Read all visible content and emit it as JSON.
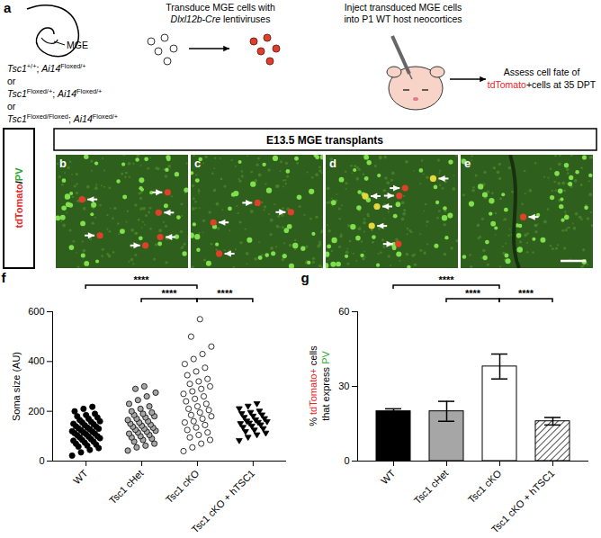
{
  "panels": {
    "a": {
      "letter": "a",
      "region": "MGE",
      "separator": "or",
      "genotypes": [
        [
          {
            "text": "Tsc1",
            "style": "italic"
          },
          {
            "text": "+/+",
            "style": "sup"
          },
          {
            "text": "; "
          },
          {
            "text": "Ai14",
            "style": "italic"
          },
          {
            "text": "Floxed/+",
            "style": "sup"
          }
        ],
        [
          {
            "text": "Tsc1",
            "style": "italic"
          },
          {
            "text": "Floxed/+",
            "style": "sup"
          },
          {
            "text": "; "
          },
          {
            "text": "Ai14",
            "style": "italic"
          },
          {
            "text": "Floxed/+",
            "style": "sup"
          }
        ],
        [
          {
            "text": "Tsc1",
            "style": "italic"
          },
          {
            "text": "Floxed/Floxed",
            "style": "sup"
          },
          {
            "text": "; "
          },
          {
            "text": "Ai14",
            "style": "italic"
          },
          {
            "text": "Floxed/+",
            "style": "sup"
          }
        ]
      ],
      "steps": [
        [
          [
            {
              "text": "Transduce MGE cells with"
            }
          ],
          [
            {
              "text": "Dlxl12b-Cre",
              "style": "italic"
            },
            {
              "text": " lentiviruses"
            }
          ]
        ],
        [
          [
            {
              "text": "Inject transduced MGE cells"
            }
          ],
          [
            {
              "text": "into P1 WT host neocortices"
            }
          ]
        ],
        [
          [
            {
              "text": "Assess cell fate of"
            }
          ],
          [
            {
              "text": "tdTomato",
              "color": "#e8251f"
            },
            {
              "text": "+cells at 35 DPT"
            }
          ]
        ]
      ]
    },
    "images": {
      "header": "E13.5 MGE transplants",
      "side_label": [
        {
          "text": "tdTomato",
          "color": "#e8251f"
        },
        {
          "text": "/"
        },
        {
          "text": "PV",
          "color": "#2fa82f"
        }
      ],
      "letters": [
        "b",
        "c",
        "d",
        "e"
      ]
    },
    "chart_letters": [
      "f",
      "g"
    ]
  },
  "chart_data": [
    {
      "type": "scatter",
      "ylabel": "Soma size (AU)",
      "ylim": [
        0,
        600
      ],
      "yticks": [
        0,
        200,
        400,
        600
      ],
      "series": [
        {
          "name": "WT",
          "color": "#000000",
          "marker": "circle",
          "values": [
            22,
            35,
            45,
            52,
            58,
            62,
            66,
            70,
            74,
            78,
            82,
            85,
            88,
            92,
            95,
            98,
            100,
            104,
            108,
            110,
            112,
            115,
            118,
            120,
            124,
            128,
            130,
            132,
            135,
            138,
            140,
            144,
            148,
            150,
            155,
            158,
            160,
            165,
            170,
            175,
            180,
            185,
            190,
            200,
            210,
            218
          ]
        },
        {
          "name": "Tsc1 cHet",
          "color": "#a6a6a6",
          "marker": "circle",
          "values": [
            42,
            55,
            62,
            70,
            78,
            85,
            90,
            95,
            100,
            105,
            110,
            115,
            118,
            122,
            126,
            130,
            134,
            138,
            142,
            146,
            150,
            155,
            160,
            165,
            170,
            175,
            180,
            185,
            190,
            195,
            200,
            210,
            220,
            230,
            245,
            260,
            275,
            290,
            300
          ]
        },
        {
          "name": "Tsc1 cKO",
          "color": "#ffffff",
          "marker": "circle",
          "values": [
            40,
            55,
            70,
            85,
            95,
            105,
            115,
            125,
            135,
            145,
            155,
            160,
            170,
            180,
            185,
            195,
            205,
            210,
            220,
            230,
            240,
            250,
            260,
            270,
            280,
            290,
            300,
            310,
            320,
            330,
            345,
            360,
            375,
            390,
            410,
            430,
            460,
            500,
            570
          ]
        },
        {
          "name": "Tsc1 cKO + hTSC1",
          "color": "#000000",
          "marker": "triangle-down",
          "values": [
            82,
            95,
            105,
            112,
            118,
            124,
            130,
            135,
            140,
            145,
            150,
            152,
            155,
            158,
            160,
            165,
            170,
            175,
            180,
            185,
            190,
            195,
            200,
            210,
            220,
            230
          ]
        }
      ],
      "annotations": [
        {
          "text": "****",
          "between": [
            "WT",
            "Tsc1 cKO"
          ]
        },
        {
          "text": "****",
          "between": [
            "Tsc1 cHet",
            "Tsc1 cKO"
          ]
        },
        {
          "text": "****",
          "between": [
            "Tsc1 cKO",
            "Tsc1 cKO + hTSC1"
          ]
        }
      ]
    },
    {
      "type": "bar",
      "ylabel": [
        [
          {
            "text": "% "
          },
          {
            "text": "tdTomato+",
            "color": "#e8251f"
          },
          {
            "text": " cells"
          }
        ],
        [
          {
            "text": "that express "
          },
          {
            "text": "PV",
            "color": "#2fa82f"
          }
        ]
      ],
      "categories": [
        "WT",
        "Tsc1 cHet",
        "Tsc1 cKO",
        "Tsc1 cKO + hTSC1"
      ],
      "values": [
        20,
        20,
        38,
        16
      ],
      "errors": [
        1,
        4,
        5,
        1.5
      ],
      "colors": [
        "#000000",
        "#a6a6a6",
        "#ffffff",
        "hatched"
      ],
      "ylim": [
        0,
        60
      ],
      "yticks": [
        0,
        30,
        60
      ],
      "annotations": [
        {
          "text": "****",
          "between": [
            "WT",
            "Tsc1 cKO"
          ]
        },
        {
          "text": "****",
          "between": [
            "Tsc1 cHet",
            "Tsc1 cKO"
          ]
        },
        {
          "text": "****",
          "between": [
            "Tsc1 cKO",
            "Tsc1 cKO + hTSC1"
          ]
        }
      ]
    }
  ]
}
